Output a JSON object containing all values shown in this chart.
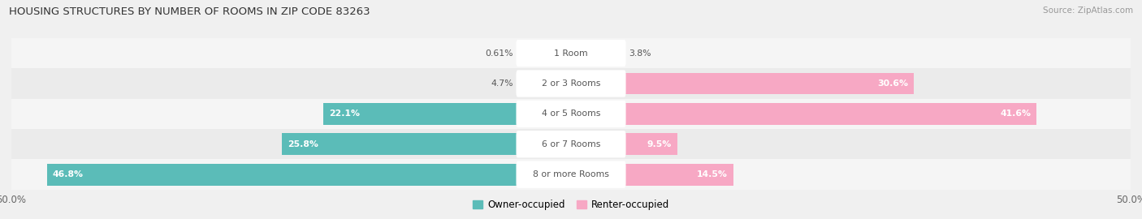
{
  "title": "HOUSING STRUCTURES BY NUMBER OF ROOMS IN ZIP CODE 83263",
  "source": "Source: ZipAtlas.com",
  "categories": [
    "1 Room",
    "2 or 3 Rooms",
    "4 or 5 Rooms",
    "6 or 7 Rooms",
    "8 or more Rooms"
  ],
  "owner_values": [
    0.61,
    4.7,
    22.1,
    25.8,
    46.8
  ],
  "renter_values": [
    3.8,
    30.6,
    41.6,
    9.5,
    14.5
  ],
  "owner_color": "#5bbcb8",
  "renter_color": "#f7a8c4",
  "row_colors": [
    "#f5f5f5",
    "#ebebeb"
  ],
  "bg_color": "#f0f0f0",
  "axis_max": 50.0,
  "legend_owner": "Owner-occupied",
  "legend_renter": "Renter-occupied",
  "label_color": "#555555",
  "title_color": "#333333",
  "source_color": "#999999"
}
